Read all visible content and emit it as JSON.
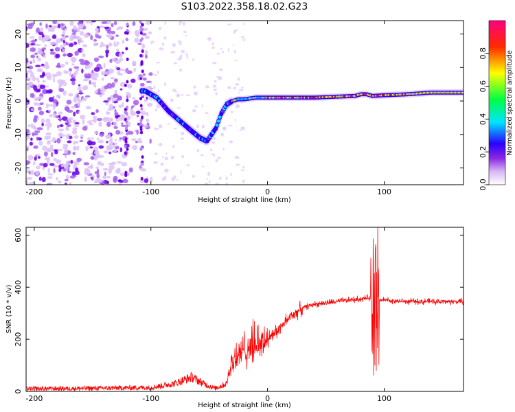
{
  "title": "S103.2022.358.18.02.G23",
  "chart_data": [
    {
      "type": "heatmap",
      "xlabel": "Height of straight line (km)",
      "ylabel": "Frequency (Hz)",
      "xlim": [
        -207,
        168
      ],
      "ylim": [
        -25,
        24
      ],
      "xticks": [
        -200,
        -100,
        0,
        100
      ],
      "yticks": [
        -20,
        -10,
        0,
        10,
        20
      ],
      "colorbar": {
        "label": "Normalized spectral amplitude",
        "ticks": [
          0.0,
          0.2,
          0.4,
          0.6,
          0.8
        ],
        "tick_labels": [
          "0.0",
          "0.2",
          "0.4",
          "0.6",
          "0.8"
        ],
        "range": [
          0,
          1
        ],
        "colors": [
          "#ffffff",
          "#d9b8f5",
          "#8b2be2",
          "#2a00ff",
          "#00e5ff",
          "#00ff40",
          "#ffff00",
          "#ff2a00",
          "#ff0080"
        ]
      },
      "ridge": {
        "x": [
          -105,
          -95,
          -85,
          -75,
          -65,
          -58,
          -52,
          -48,
          -44,
          -40,
          -35,
          -30,
          -25,
          -20,
          -10,
          0,
          20,
          40,
          60,
          75,
          80,
          85,
          90,
          100,
          120,
          140,
          168
        ],
        "y": [
          3,
          1,
          -3,
          -6,
          -9,
          -11,
          -12,
          -10,
          -8,
          -4,
          -1,
          0,
          0.5,
          0.5,
          1,
          1,
          1,
          1,
          1.3,
          1.5,
          2,
          2,
          1.5,
          1.7,
          2,
          2.5,
          2.5
        ]
      }
    },
    {
      "type": "line",
      "xlabel": "Height of straight line (km)",
      "ylabel": "SNR (10 * v/v)",
      "xlim": [
        -207,
        168
      ],
      "ylim": [
        0,
        630
      ],
      "xticks": [
        -200,
        -100,
        0,
        100
      ],
      "yticks": [
        0,
        200,
        400,
        600
      ],
      "color": "#ff0000",
      "envelope": {
        "x": [
          -207,
          -150,
          -100,
          -80,
          -65,
          -55,
          -45,
          -35,
          -32,
          -25,
          -15,
          0,
          10,
          20,
          30,
          40,
          60,
          80,
          88,
          92,
          95,
          100,
          120,
          168
        ],
        "y": [
          10,
          12,
          15,
          30,
          55,
          30,
          12,
          30,
          100,
          140,
          170,
          200,
          240,
          290,
          320,
          335,
          345,
          355,
          360,
          330,
          350,
          350,
          345,
          345
        ]
      }
    }
  ]
}
